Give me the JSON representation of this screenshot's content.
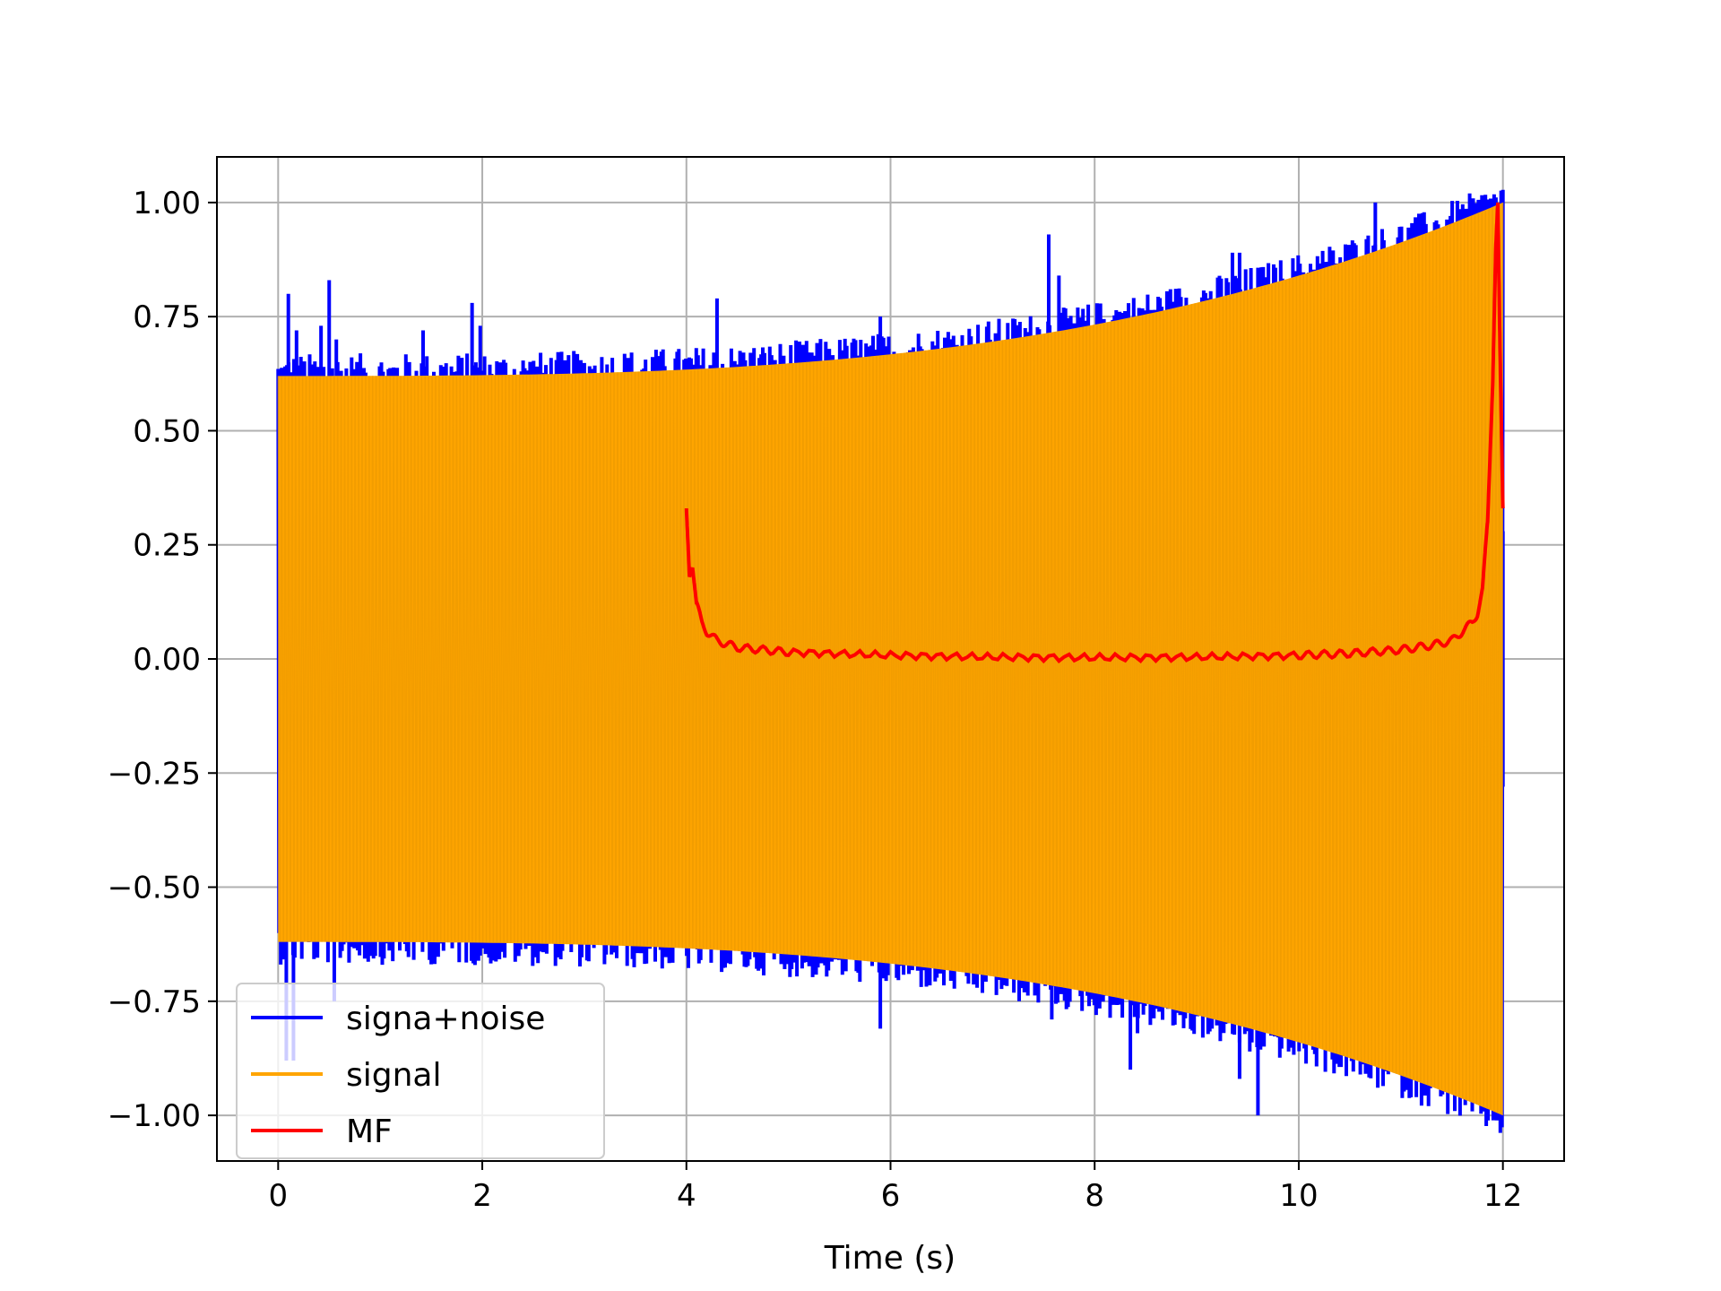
{
  "chart_data": {
    "type": "line",
    "title": "",
    "xlabel": "Time (s)",
    "ylabel": "",
    "xlim": [
      -0.6,
      12.6
    ],
    "ylim": [
      -1.1,
      1.1
    ],
    "xticks": [
      0,
      2,
      4,
      6,
      8,
      10,
      12
    ],
    "xtick_labels": [
      "0",
      "2",
      "4",
      "6",
      "8",
      "10",
      "12"
    ],
    "yticks": [
      1.0,
      0.75,
      0.5,
      0.25,
      0.0,
      -0.25,
      -0.5,
      -0.75,
      -1.0
    ],
    "ytick_labels": [
      "1.00",
      "0.75",
      "0.50",
      "0.25",
      "0.00",
      "−0.25",
      "−0.50",
      "−0.75",
      "−1.00"
    ],
    "grid": true,
    "legend_position": "lower-left",
    "series": [
      {
        "name": "signa+noise",
        "color": "#0000ff",
        "style": "noisy-oscillation",
        "x_range": [
          0,
          12
        ],
        "envelope_start": 0.62,
        "envelope_end": 1.0,
        "spikes": [
          {
            "x": 0.1,
            "y": 0.8
          },
          {
            "x": 0.18,
            "y": 0.72
          },
          {
            "x": 0.42,
            "y": 0.73
          },
          {
            "x": 0.5,
            "y": 0.83
          },
          {
            "x": 0.57,
            "y": 0.7
          },
          {
            "x": 1.42,
            "y": 0.72
          },
          {
            "x": 1.9,
            "y": 0.78
          },
          {
            "x": 1.98,
            "y": 0.73
          },
          {
            "x": 4.3,
            "y": 0.79
          },
          {
            "x": 5.9,
            "y": 0.75
          },
          {
            "x": 7.55,
            "y": 0.93
          },
          {
            "x": 7.65,
            "y": 0.84
          },
          {
            "x": 9.35,
            "y": 0.89
          },
          {
            "x": 9.42,
            "y": 0.89
          },
          {
            "x": 10.75,
            "y": 1.0
          },
          {
            "x": 0.08,
            "y": -0.88
          },
          {
            "x": 0.15,
            "y": -0.88
          },
          {
            "x": 0.55,
            "y": -0.75
          },
          {
            "x": 5.9,
            "y": -0.81
          },
          {
            "x": 7.58,
            "y": -0.79
          },
          {
            "x": 8.35,
            "y": -0.9
          },
          {
            "x": 8.42,
            "y": -0.82
          },
          {
            "x": 9.15,
            "y": -0.81
          },
          {
            "x": 9.42,
            "y": -0.92
          },
          {
            "x": 9.52,
            "y": -0.86
          },
          {
            "x": 9.6,
            "y": -1.0
          },
          {
            "x": 11.95,
            "y": -0.7
          },
          {
            "x": 12.0,
            "y": 0.28
          },
          {
            "x": 12.0,
            "y": -0.28
          }
        ]
      },
      {
        "name": "signal",
        "color": "#ffa500",
        "style": "oscillation",
        "x_range": [
          0,
          12
        ],
        "envelope_start": 0.62,
        "envelope_end": 1.0
      },
      {
        "name": "MF",
        "color": "#ff0000",
        "style": "line",
        "x": [
          4.0,
          4.03,
          4.06,
          4.1,
          4.15,
          4.2,
          4.3,
          4.5,
          5.0,
          6.0,
          7.0,
          8.0,
          9.0,
          10.0,
          10.5,
          11.0,
          11.3,
          11.5,
          11.6,
          11.7,
          11.75,
          11.8,
          11.85,
          11.9,
          11.93,
          11.95,
          11.97,
          12.0
        ],
        "y": [
          0.33,
          0.18,
          0.2,
          0.12,
          0.08,
          0.06,
          0.04,
          0.025,
          0.015,
          0.008,
          0.004,
          0.003,
          0.004,
          0.008,
          0.012,
          0.02,
          0.03,
          0.04,
          0.06,
          0.08,
          0.1,
          0.15,
          0.3,
          0.6,
          0.9,
          1.0,
          0.7,
          0.33
        ]
      }
    ]
  }
}
